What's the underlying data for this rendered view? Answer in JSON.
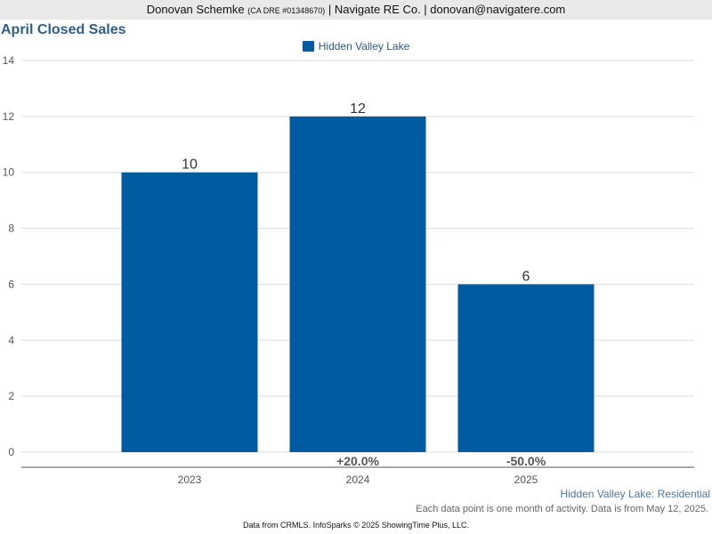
{
  "header": {
    "agent_name": "Donovan Schemke",
    "license": "(CA DRE #01348670)",
    "rest": "| Navigate RE Co. | donovan@navigatere.com"
  },
  "colors": {
    "bar": "#005ba1",
    "title": "#2e5f8a",
    "grid": "#dddddd",
    "axis": "#555555"
  },
  "chart_data": {
    "type": "bar",
    "title": "April Closed Sales",
    "categories": [
      "2023",
      "2024",
      "2025"
    ],
    "series": [
      {
        "name": "Hidden Valley Lake",
        "values": [
          10,
          12,
          6
        ]
      }
    ],
    "ylim": [
      0,
      14
    ],
    "yticks": [
      0,
      2,
      4,
      6,
      8,
      10,
      12,
      14
    ],
    "value_labels": [
      "10",
      "12",
      "6"
    ],
    "change_labels": [
      "",
      "+20.0%",
      "-50.0%"
    ],
    "grid": true,
    "legend": "top-center"
  },
  "footer": {
    "subtitle": "Hidden Valley Lake: Residential",
    "note": "Each data point is one month of activity. Data is from May 12, 2025.",
    "credit": "Data from CRMLS. InfoSparks © 2025 ShowingTime Plus, LLC."
  }
}
